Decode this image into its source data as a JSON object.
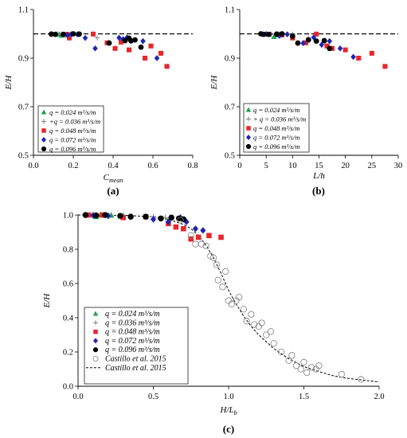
{
  "colors": {
    "green": "#1aa34a",
    "gray": "#808080",
    "red": "#e8262a",
    "blue": "#1f24b8",
    "black": "#000000",
    "reference": "#000000"
  },
  "chart_data": [
    {
      "type": "scatter",
      "label": "(a)",
      "xlabel": "C",
      "xlabel_sub": "mean",
      "ylabel": "E/H",
      "xlim": [
        0,
        0.8
      ],
      "ylim": [
        0.5,
        1.1
      ],
      "xticks": [
        "0.0",
        "0.2",
        "0.4",
        "0.6",
        "0.8"
      ],
      "xtick_values": [
        0,
        0.2,
        0.4,
        0.6,
        0.8
      ],
      "yticks": [
        "0.5",
        "0.7",
        "0.9",
        "1.1"
      ],
      "ytick_values": [
        0.5,
        0.7,
        0.9,
        1.1
      ],
      "reference_line": 1.0,
      "legend_position": "bottom-left",
      "series": [
        {
          "name": "q = 0.024 m³/s/m",
          "marker": "triangle",
          "color": "green",
          "points": [
            [
              0.13,
              0.998
            ],
            [
              0.14,
              0.993
            ],
            [
              0.16,
              0.997
            ]
          ]
        },
        {
          "name": "+q = 0.036 m³/s/m",
          "marker": "plus",
          "color": "gray",
          "points": [
            [
              0.12,
              1.0
            ],
            [
              0.14,
              0.998
            ],
            [
              0.16,
              0.992
            ],
            [
              0.22,
              0.998
            ],
            [
              0.32,
              0.984
            ]
          ]
        },
        {
          "name": "q = 0.048 m³/s/m",
          "marker": "square",
          "color": "red",
          "points": [
            [
              0.17,
              0.998
            ],
            [
              0.18,
              0.983
            ],
            [
              0.3,
              0.999
            ],
            [
              0.37,
              0.963
            ],
            [
              0.41,
              0.94
            ],
            [
              0.44,
              0.966
            ],
            [
              0.48,
              0.934
            ],
            [
              0.56,
              0.9
            ],
            [
              0.59,
              0.95
            ],
            [
              0.64,
              0.92
            ],
            [
              0.67,
              0.866
            ]
          ]
        },
        {
          "name": "q = 0.072 m³/s/m",
          "marker": "diamond",
          "color": "blue",
          "points": [
            [
              0.17,
              0.995
            ],
            [
              0.19,
              0.998
            ],
            [
              0.22,
              0.998
            ],
            [
              0.26,
              0.983
            ],
            [
              0.31,
              0.94
            ],
            [
              0.43,
              0.984
            ],
            [
              0.45,
              0.978
            ],
            [
              0.47,
              0.985
            ],
            [
              0.55,
              0.97
            ],
            [
              0.62,
              0.9
            ]
          ]
        },
        {
          "name": "q = 0.096 m³/s/m",
          "marker": "circle",
          "color": "black",
          "points": [
            [
              0.09,
              0.999
            ],
            [
              0.11,
              0.998
            ],
            [
              0.15,
              0.998
            ],
            [
              0.2,
              1.0
            ],
            [
              0.23,
              0.999
            ],
            [
              0.38,
              0.962
            ],
            [
              0.46,
              0.972
            ],
            [
              0.48,
              0.982
            ],
            [
              0.49,
              0.971
            ],
            [
              0.51,
              0.975
            ],
            [
              0.54,
              0.945
            ]
          ]
        }
      ]
    },
    {
      "type": "scatter",
      "label": "(b)",
      "xlabel": "L/h",
      "ylabel": "E/H",
      "xlim": [
        0,
        30
      ],
      "ylim": [
        0.5,
        1.1
      ],
      "xticks": [
        "0",
        "5",
        "10",
        "15",
        "20",
        "25",
        "30"
      ],
      "xtick_values": [
        0,
        5,
        10,
        15,
        20,
        25,
        30
      ],
      "yticks": [
        "0.5",
        "0.7",
        "0.9",
        "1.1"
      ],
      "ytick_values": [
        0.5,
        0.7,
        0.9,
        1.1
      ],
      "reference_line": 1.0,
      "legend_position": "bottom-left",
      "series": [
        {
          "name": "q = 0.024 m³/s/m",
          "marker": "triangle",
          "color": "green",
          "points": [
            [
              6.5,
              0.988
            ],
            [
              7.0,
              0.995
            ],
            [
              7.5,
              0.998
            ]
          ]
        },
        {
          "name": "+ q = 0.036 m³/s/m",
          "marker": "plus",
          "color": "gray",
          "points": [
            [
              5.0,
              1.0
            ],
            [
              6.0,
              0.998
            ],
            [
              7.5,
              0.992
            ],
            [
              10.0,
              0.998
            ],
            [
              13.0,
              0.984
            ]
          ]
        },
        {
          "name": "q = 0.048 m³/s/m",
          "marker": "square",
          "color": "red",
          "points": [
            [
              5.5,
              0.998
            ],
            [
              8.0,
              0.995
            ],
            [
              10.0,
              0.983
            ],
            [
              12.5,
              0.963
            ],
            [
              14.5,
              0.999
            ],
            [
              16.5,
              0.95
            ],
            [
              17.5,
              0.94
            ],
            [
              20.0,
              0.934
            ],
            [
              22.5,
              0.9
            ],
            [
              25.0,
              0.92
            ],
            [
              27.5,
              0.866
            ]
          ]
        },
        {
          "name": "q = 0.072 m³/s/m",
          "marker": "diamond",
          "color": "blue",
          "points": [
            [
              5.0,
              0.999
            ],
            [
              7.5,
              0.992
            ],
            [
              9.0,
              0.998
            ],
            [
              12.0,
              0.962
            ],
            [
              14.0,
              0.985
            ],
            [
              15.5,
              0.955
            ],
            [
              17.0,
              0.97
            ],
            [
              19.0,
              0.94
            ],
            [
              21.5,
              0.905
            ]
          ]
        },
        {
          "name": "q = 0.096 m³/s/m",
          "marker": "circle",
          "color": "black",
          "points": [
            [
              4.0,
              1.0
            ],
            [
              4.5,
              0.998
            ],
            [
              5.5,
              0.998
            ],
            [
              7.0,
              0.999
            ],
            [
              8.0,
              1.0
            ],
            [
              10.0,
              0.99
            ],
            [
              11.0,
              0.962
            ],
            [
              13.0,
              0.975
            ],
            [
              14.5,
              0.97
            ],
            [
              16.0,
              0.972
            ],
            [
              17.0,
              0.94
            ]
          ]
        }
      ]
    },
    {
      "type": "scatter",
      "label": "(c)",
      "xlabel": "H/L",
      "xlabel_sub": "b",
      "ylabel": "E/H",
      "xlim": [
        0,
        2.0
      ],
      "ylim": [
        0,
        1.0
      ],
      "xticks": [
        "0.0",
        "0.5",
        "1.0",
        "1.5",
        "2.0"
      ],
      "xtick_values": [
        0,
        0.5,
        1.0,
        1.5,
        2.0
      ],
      "yticks": [
        "0.0",
        "0.2",
        "0.4",
        "0.6",
        "0.8",
        "1.0"
      ],
      "ytick_values": [
        0,
        0.2,
        0.4,
        0.6,
        0.8,
        1.0
      ],
      "legend_position": "bottom-left",
      "series": [
        {
          "name": "q = 0.024 m³/s/m",
          "marker": "triangle",
          "color": "green",
          "points": [
            [
              0.12,
              0.99
            ],
            [
              0.15,
              1.0
            ],
            [
              0.22,
              0.998
            ],
            [
              0.3,
              0.996
            ]
          ]
        },
        {
          "name": "q = 0.036 m³/s/m",
          "marker": "plus",
          "color": "gray",
          "points": [
            [
              0.1,
              1.0
            ],
            [
              0.2,
              0.998
            ],
            [
              0.3,
              0.995
            ],
            [
              0.5,
              0.99
            ],
            [
              0.58,
              0.985
            ]
          ]
        },
        {
          "name": "q = 0.048 m³/s/m",
          "marker": "square",
          "color": "red",
          "points": [
            [
              0.07,
              1.0
            ],
            [
              0.16,
              1.0
            ],
            [
              0.3,
              0.985
            ],
            [
              0.45,
              0.99
            ],
            [
              0.6,
              0.95
            ],
            [
              0.65,
              0.93
            ],
            [
              0.7,
              0.92
            ],
            [
              0.75,
              0.86
            ],
            [
              0.8,
              0.87
            ],
            [
              0.87,
              0.88
            ],
            [
              0.95,
              0.87
            ]
          ]
        },
        {
          "name": "q = 0.072 m³/s/m",
          "marker": "diamond",
          "color": "blue",
          "points": [
            [
              0.1,
              0.998
            ],
            [
              0.2,
              0.995
            ],
            [
              0.35,
              0.99
            ],
            [
              0.5,
              0.975
            ],
            [
              0.6,
              0.96
            ],
            [
              0.68,
              0.985
            ],
            [
              0.72,
              0.96
            ],
            [
              0.78,
              0.92
            ],
            [
              0.83,
              0.91
            ]
          ]
        },
        {
          "name": "q = 0.096 m³/s/m",
          "marker": "circle",
          "color": "black",
          "points": [
            [
              0.05,
              1.0
            ],
            [
              0.12,
              0.998
            ],
            [
              0.18,
              1.0
            ],
            [
              0.28,
              0.995
            ],
            [
              0.35,
              0.99
            ],
            [
              0.45,
              0.99
            ],
            [
              0.55,
              0.98
            ],
            [
              0.62,
              0.985
            ],
            [
              0.67,
              0.98
            ],
            [
              0.7,
              0.975
            ]
          ]
        },
        {
          "name": "Castillo et al. 2015",
          "marker": "open-circle",
          "color": "gray",
          "points": [
            [
              0.68,
              0.97
            ],
            [
              0.75,
              0.88
            ],
            [
              0.78,
              0.83
            ],
            [
              0.82,
              0.83
            ],
            [
              0.85,
              0.82
            ],
            [
              0.88,
              0.76
            ],
            [
              0.9,
              0.75
            ],
            [
              0.92,
              0.71
            ],
            [
              0.93,
              0.62
            ],
            [
              0.96,
              0.58
            ],
            [
              0.98,
              0.67
            ],
            [
              1.0,
              0.5
            ],
            [
              1.02,
              0.48
            ],
            [
              1.05,
              0.5
            ],
            [
              1.07,
              0.52
            ],
            [
              1.1,
              0.45
            ],
            [
              1.12,
              0.38
            ],
            [
              1.15,
              0.42
            ],
            [
              1.17,
              0.36
            ],
            [
              1.2,
              0.35
            ],
            [
              1.22,
              0.37
            ],
            [
              1.25,
              0.3
            ],
            [
              1.28,
              0.32
            ],
            [
              1.3,
              0.25
            ],
            [
              1.35,
              0.2
            ],
            [
              1.4,
              0.15
            ],
            [
              1.42,
              0.18
            ],
            [
              1.45,
              0.12
            ],
            [
              1.48,
              0.1
            ],
            [
              1.5,
              0.14
            ],
            [
              1.52,
              0.08
            ],
            [
              1.55,
              0.11
            ],
            [
              1.58,
              0.1
            ],
            [
              1.6,
              0.12
            ],
            [
              1.75,
              0.07
            ],
            [
              1.88,
              0.04
            ]
          ]
        }
      ],
      "reference_curve": {
        "name": "Castillo et al. 2015",
        "style": "dashed",
        "points": [
          [
            0.0,
            1.0
          ],
          [
            0.3,
            0.998
          ],
          [
            0.5,
            0.99
          ],
          [
            0.6,
            0.975
          ],
          [
            0.7,
            0.945
          ],
          [
            0.75,
            0.92
          ],
          [
            0.8,
            0.88
          ],
          [
            0.85,
            0.825
          ],
          [
            0.9,
            0.75
          ],
          [
            0.95,
            0.66
          ],
          [
            1.0,
            0.56
          ],
          [
            1.05,
            0.48
          ],
          [
            1.1,
            0.41
          ],
          [
            1.15,
            0.35
          ],
          [
            1.2,
            0.3
          ],
          [
            1.3,
            0.22
          ],
          [
            1.4,
            0.16
          ],
          [
            1.5,
            0.115
          ],
          [
            1.6,
            0.085
          ],
          [
            1.7,
            0.06
          ],
          [
            1.8,
            0.045
          ],
          [
            1.9,
            0.035
          ],
          [
            2.0,
            0.025
          ]
        ]
      }
    }
  ]
}
